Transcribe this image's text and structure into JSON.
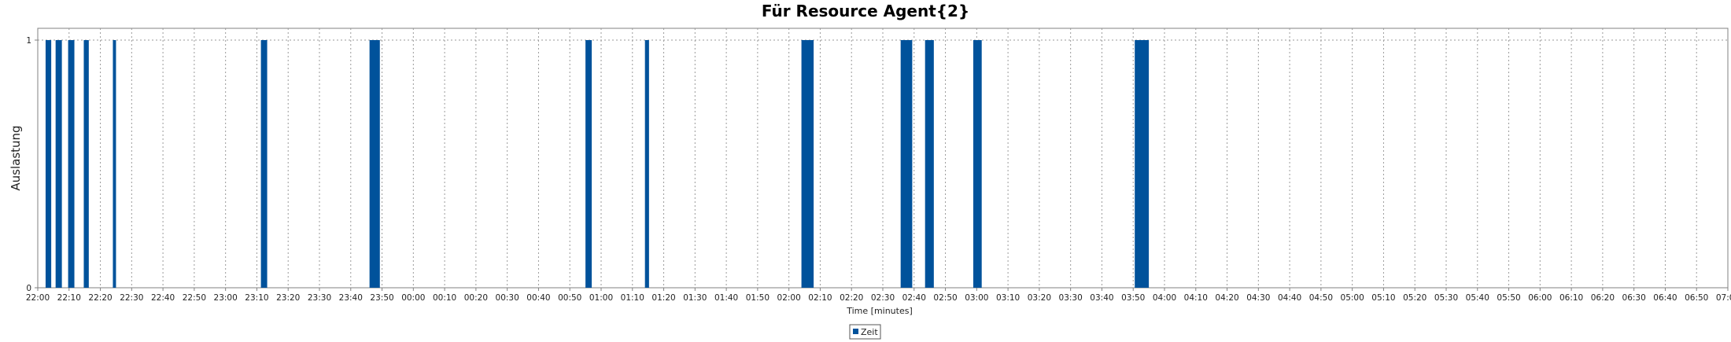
{
  "chart_data": {
    "type": "bar",
    "title": "Für Resource Agent{2}",
    "xlabel": "Time [minutes]",
    "ylabel": "Auslastung",
    "y_ticks": [
      "0",
      "1"
    ],
    "ylim": [
      0,
      1
    ],
    "x_range_minutes": [
      0,
      540
    ],
    "x_ticks": [
      "22:00",
      "22:10",
      "22:20",
      "22:30",
      "22:40",
      "22:50",
      "23:00",
      "23:10",
      "23:20",
      "23:30",
      "23:40",
      "23:50",
      "00:00",
      "00:10",
      "00:20",
      "00:30",
      "00:40",
      "00:50",
      "01:00",
      "01:10",
      "01:20",
      "01:30",
      "01:40",
      "01:50",
      "02:00",
      "02:10",
      "02:20",
      "02:30",
      "02:40",
      "02:50",
      "03:00",
      "03:10",
      "03:20",
      "03:30",
      "03:40",
      "03:50",
      "04:00",
      "04:10",
      "04:20",
      "04:30",
      "04:40",
      "04:50",
      "05:00",
      "05:10",
      "05:20",
      "05:30",
      "05:40",
      "05:50",
      "06:00",
      "06:10",
      "06:20",
      "06:30",
      "06:40",
      "06:50",
      "07:00"
    ],
    "grid": true,
    "legend_position": "bottom-center",
    "series": [
      {
        "name": "Zeit",
        "color": "#00529b",
        "bars": [
          {
            "start": 2.5,
            "end": 4.3,
            "value": 1
          },
          {
            "start": 5.7,
            "end": 7.7,
            "value": 1
          },
          {
            "start": 9.7,
            "end": 11.7,
            "value": 1
          },
          {
            "start": 14.7,
            "end": 16.3,
            "value": 1
          },
          {
            "start": 24.0,
            "end": 25.0,
            "value": 1
          },
          {
            "start": 71.3,
            "end": 73.3,
            "value": 1
          },
          {
            "start": 106.0,
            "end": 109.3,
            "value": 1
          },
          {
            "start": 175.0,
            "end": 177.0,
            "value": 1
          },
          {
            "start": 194.0,
            "end": 195.3,
            "value": 1
          },
          {
            "start": 244.0,
            "end": 247.9,
            "value": 1
          },
          {
            "start": 275.7,
            "end": 279.4,
            "value": 1
          },
          {
            "start": 283.5,
            "end": 286.3,
            "value": 1
          },
          {
            "start": 298.9,
            "end": 301.6,
            "value": 1
          },
          {
            "start": 350.5,
            "end": 355.0,
            "value": 1
          }
        ]
      }
    ]
  }
}
